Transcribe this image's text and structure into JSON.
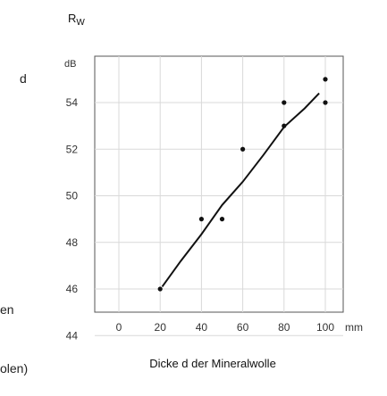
{
  "left_fragments": [
    "d",
    "en",
    "olen)"
  ],
  "chart_data": {
    "type": "scatter",
    "ylabel_main": "R",
    "ylabel_sub": "W",
    "yunit": "dB",
    "xlabel": "Dicke d der Mineralwolle",
    "xunit": "mm",
    "xlim": [
      0,
      100
    ],
    "ylim": [
      44,
      55.5
    ],
    "xticks": [
      0,
      20,
      40,
      60,
      80,
      100
    ],
    "yticks": [
      44,
      46,
      48,
      50,
      52,
      54
    ],
    "grid": true,
    "points": [
      {
        "x": 20,
        "y": 46
      },
      {
        "x": 40,
        "y": 49
      },
      {
        "x": 50,
        "y": 49
      },
      {
        "x": 60,
        "y": 52
      },
      {
        "x": 80,
        "y": 54
      },
      {
        "x": 80,
        "y": 53
      },
      {
        "x": 100,
        "y": 55
      },
      {
        "x": 100,
        "y": 54
      }
    ],
    "trend": [
      {
        "x": 21,
        "y": 46.1
      },
      {
        "x": 30,
        "y": 47.2
      },
      {
        "x": 40,
        "y": 48.35
      },
      {
        "x": 50,
        "y": 49.6
      },
      {
        "x": 60,
        "y": 50.6
      },
      {
        "x": 70,
        "y": 51.75
      },
      {
        "x": 80,
        "y": 52.95
      },
      {
        "x": 90,
        "y": 53.75
      },
      {
        "x": 97,
        "y": 54.4
      }
    ]
  }
}
